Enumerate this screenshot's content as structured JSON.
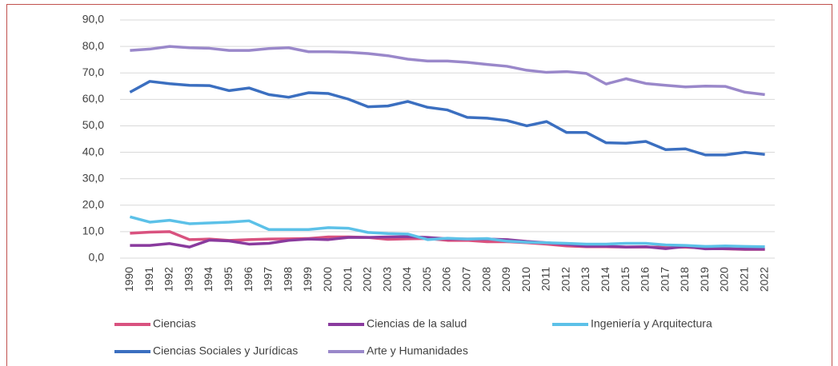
{
  "chart_data": {
    "type": "line",
    "categories": [
      "1990",
      "1991",
      "1992",
      "1993",
      "1994",
      "1995",
      "1996",
      "1997",
      "1998",
      "1999",
      "2000",
      "2001",
      "2002",
      "2003",
      "2004",
      "2005",
      "2006",
      "2007",
      "2008",
      "2009",
      "2010",
      "2011",
      "2012",
      "2013",
      "2014",
      "2015",
      "2016",
      "2017",
      "2018",
      "2019",
      "2020",
      "2021",
      "2022"
    ],
    "series": [
      {
        "name": "Ciencias",
        "color": "#d9527f",
        "values": [
          9.4,
          9.8,
          10,
          7,
          7.2,
          6.7,
          7,
          7.2,
          7.3,
          7.4,
          8,
          8,
          7.8,
          7.1,
          7.3,
          7.4,
          6.7,
          6.7,
          6.2,
          6.2,
          5.8,
          5.3,
          4.6,
          4.3,
          4.3,
          4.2,
          4.2,
          4.1,
          4.1,
          3.8,
          3.5,
          3.3,
          3.3
        ]
      },
      {
        "name": "Ciencias de la salud",
        "color": "#8a3b9e",
        "values": [
          4.8,
          4.8,
          5.5,
          4.2,
          6.8,
          6.5,
          5.3,
          5.6,
          6.7,
          7.2,
          7,
          7.8,
          7.8,
          8,
          8.1,
          7.8,
          7.3,
          7.2,
          7.2,
          7,
          6.3,
          5.8,
          5.2,
          4.5,
          4.5,
          4.2,
          4.3,
          3.6,
          4.4,
          3.5,
          3.6,
          3.4,
          3.4
        ]
      },
      {
        "name": "Ingeniería y Arquitectura",
        "color": "#5cc1e8",
        "values": [
          15.6,
          13.6,
          14.3,
          13,
          13.3,
          13.6,
          14.1,
          10.8,
          10.8,
          10.8,
          11.5,
          11.3,
          9.7,
          9.3,
          9.1,
          7,
          7.5,
          7.2,
          7.4,
          6.4,
          6,
          5.8,
          5.6,
          5.3,
          5.3,
          5.6,
          5.6,
          5,
          4.8,
          4.4,
          4.6,
          4.4,
          4.3
        ]
      },
      {
        "name": "Ciencias Sociales y Jurídicas",
        "color": "#3b6fc0",
        "values": [
          62.7,
          66.8,
          65.9,
          65.3,
          65.2,
          63.3,
          64.3,
          61.8,
          60.8,
          62.5,
          62.2,
          60.1,
          57.2,
          57.5,
          59.2,
          57,
          56,
          53.2,
          52.9,
          52,
          50,
          51.6,
          47.5,
          47.5,
          43.6,
          43.4,
          44.1,
          41,
          41.3,
          39,
          39,
          40,
          39.2
        ]
      },
      {
        "name": "Arte y Humanidades",
        "color": "#9a88ca",
        "values": [
          78.5,
          79,
          80,
          79.5,
          79.3,
          78.5,
          78.5,
          79.2,
          79.5,
          78,
          78,
          77.8,
          77.3,
          76.5,
          75.2,
          74.5,
          74.5,
          74,
          73.2,
          72.5,
          71,
          70.2,
          70.5,
          69.8,
          65.8,
          67.8,
          66,
          65.3,
          64.7,
          65,
          64.9,
          62.7,
          61.8
        ]
      }
    ],
    "ylim": [
      0,
      90
    ],
    "yticks": [
      {
        "value": 0,
        "label": "0,0"
      },
      {
        "value": 10,
        "label": "10,0"
      },
      {
        "value": 20,
        "label": "20,0"
      },
      {
        "value": 30,
        "label": "30,0"
      },
      {
        "value": 40,
        "label": "40,0"
      },
      {
        "value": 50,
        "label": "50,0"
      },
      {
        "value": 60,
        "label": "60,0"
      },
      {
        "value": 70,
        "label": "70,0"
      },
      {
        "value": 80,
        "label": "80,0"
      },
      {
        "value": 90,
        "label": "90,0"
      }
    ],
    "grid": true
  }
}
